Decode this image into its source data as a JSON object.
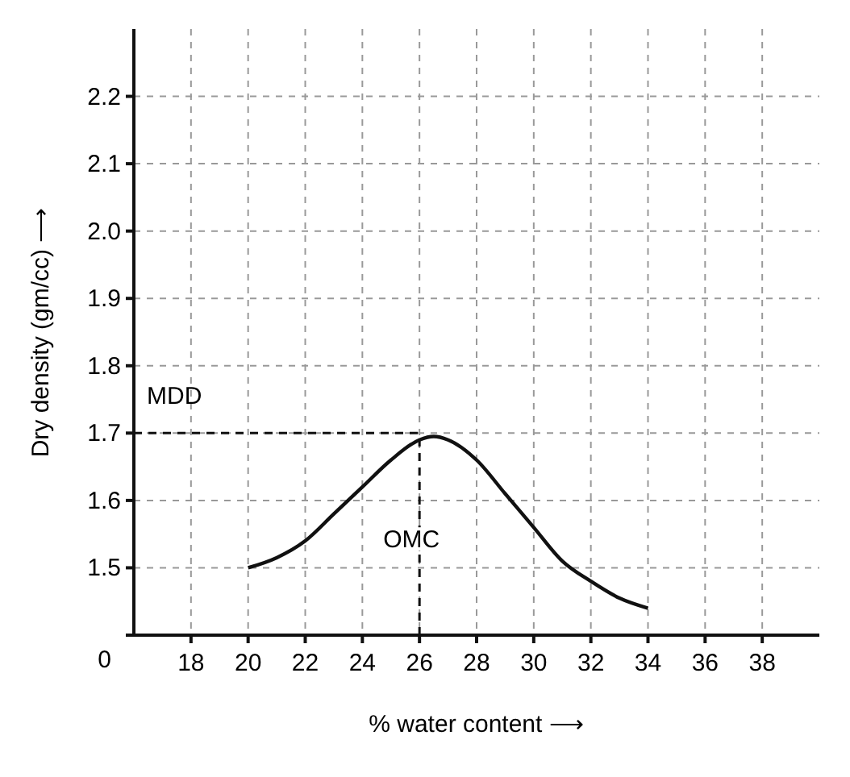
{
  "chart_data": {
    "type": "line",
    "xlabel": "% water content ⟶",
    "ylabel": "Dry density (gm/cc) ⟶",
    "x": [
      20,
      21,
      22,
      23,
      24,
      25,
      26,
      26.5,
      27,
      28,
      29,
      30,
      31,
      32,
      33,
      34
    ],
    "series": [
      {
        "color": "#111111",
        "values": [
          1.5,
          1.515,
          1.54,
          1.58,
          1.62,
          1.66,
          1.69,
          1.695,
          1.69,
          1.66,
          1.61,
          1.56,
          1.51,
          1.48,
          1.455,
          1.44
        ]
      }
    ],
    "xlim": [
      16,
      40
    ],
    "xticks": [
      18,
      20,
      22,
      24,
      26,
      28,
      30,
      32,
      34,
      36,
      38
    ],
    "ylim": [
      1.4,
      2.3
    ],
    "annotations": [
      "0"
    ],
    "yticks": [
      {
        "value": 1.4,
        "label": null
      },
      1.5,
      1.6,
      1.7,
      1.8,
      1.9,
      {
        "value": 2,
        "label": "2.0"
      },
      2.1,
      2.2
    ],
    "grid": true,
    "line_style": "solid",
    "marker": "none",
    "ref_lines": [
      {
        "axis": "y",
        "value": 1.7,
        "label": "MDD",
        "line_style": "dashed"
      },
      {
        "axis": "x",
        "value": 26,
        "label": "OMC",
        "line_style": "dashed"
      }
    ]
  }
}
